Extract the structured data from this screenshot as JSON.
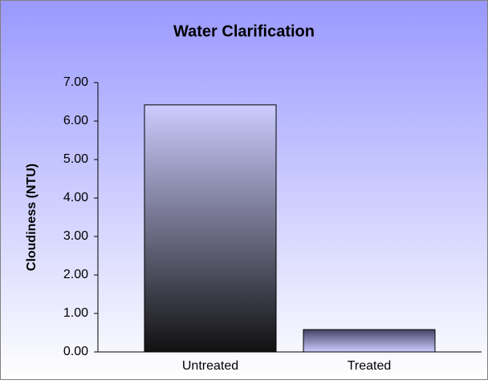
{
  "chart_data": {
    "type": "bar",
    "title": "Water Clarification",
    "y_label": "Cloudiness (NTU)",
    "categories": [
      "Untreated",
      "Treated"
    ],
    "values": [
      6.42,
      0.58
    ],
    "color": "#ccccff",
    "ylim": [
      0,
      7
    ],
    "yticks": [
      {
        "value": 0,
        "label": "0.00"
      },
      {
        "value": 1,
        "label": "1.00"
      },
      {
        "value": 2,
        "label": "2.00"
      },
      {
        "value": 3,
        "label": "3.00"
      },
      {
        "value": 4,
        "label": "4.00"
      },
      {
        "value": 5,
        "label": "5.00"
      },
      {
        "value": 6,
        "label": "6.00"
      },
      {
        "value": 7,
        "label": "7.00"
      }
    ],
    "grid": false
  }
}
